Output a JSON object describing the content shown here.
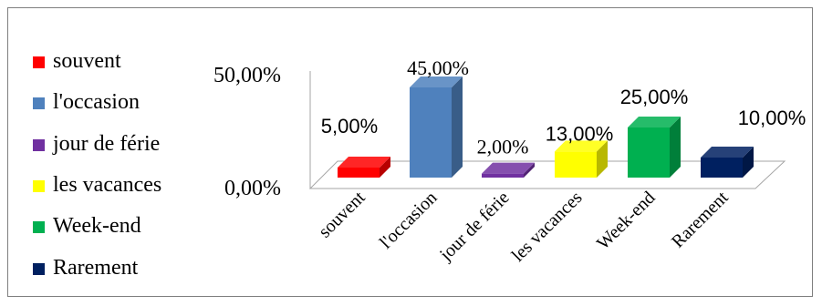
{
  "chart_data": {
    "type": "bar",
    "style": "3d-column",
    "categories": [
      "souvent",
      "l'occasion",
      "jour de férie",
      "les vacances",
      "Week-end",
      "Rarement"
    ],
    "values": [
      5,
      45,
      2,
      13,
      25,
      10
    ],
    "data_labels": [
      "5,00%",
      "45,00%",
      "2,00%",
      "13,00%",
      "25,00%",
      "10,00%"
    ],
    "colors": [
      "#ff0000",
      "#4f81bd",
      "#7030a0",
      "#ffff00",
      "#00b050",
      "#002060"
    ],
    "ytick_labels": [
      "50,00%",
      "0,00%"
    ],
    "ylim": [
      0,
      50
    ],
    "legend": {
      "placement": "left",
      "entries": [
        "souvent",
        "l'occasion",
        "jour de férie",
        "les vacances",
        "Week-end",
        "Rarement"
      ]
    },
    "grid": false
  }
}
